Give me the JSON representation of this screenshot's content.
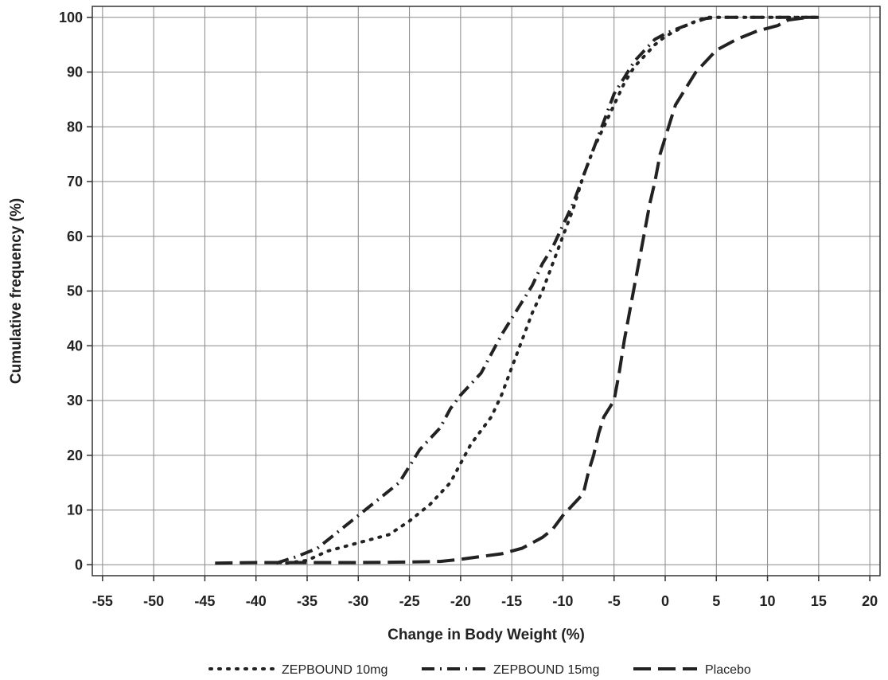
{
  "chart_data": {
    "type": "line",
    "xlabel": "Change in Body Weight (%)",
    "ylabel": "Cumulative frequency (%)",
    "xlim": [
      -56,
      21
    ],
    "ylim": [
      -2,
      102
    ],
    "x_ticks": [
      -55,
      -50,
      -45,
      -40,
      -35,
      -30,
      -25,
      -20,
      -15,
      -10,
      -5,
      0,
      5,
      10,
      15,
      20
    ],
    "y_ticks": [
      0,
      10,
      20,
      30,
      40,
      50,
      60,
      70,
      80,
      90,
      100
    ],
    "grid": true,
    "legend_position": "bottom",
    "series": [
      {
        "name": "ZEPBOUND 10mg",
        "style": "dotted",
        "color": "#222222",
        "points": [
          [
            -37,
            0.3
          ],
          [
            -35,
            0.8
          ],
          [
            -33,
            2.5
          ],
          [
            -31,
            3.5
          ],
          [
            -29,
            4.5
          ],
          [
            -27,
            5.5
          ],
          [
            -25,
            8
          ],
          [
            -23,
            11
          ],
          [
            -21,
            15
          ],
          [
            -19,
            22
          ],
          [
            -17,
            27
          ],
          [
            -16,
            31
          ],
          [
            -15,
            36
          ],
          [
            -14,
            41
          ],
          [
            -13,
            46
          ],
          [
            -12,
            50
          ],
          [
            -11,
            55
          ],
          [
            -10,
            60
          ],
          [
            -9,
            65
          ],
          [
            -8,
            71
          ],
          [
            -7,
            76
          ],
          [
            -6,
            80
          ],
          [
            -5,
            84
          ],
          [
            -4,
            88
          ],
          [
            -3,
            91
          ],
          [
            -2,
            93
          ],
          [
            -1,
            95
          ],
          [
            0,
            96.5
          ],
          [
            1,
            97.5
          ],
          [
            2,
            98.5
          ],
          [
            3,
            99.3
          ],
          [
            4,
            100
          ],
          [
            15,
            100
          ]
        ]
      },
      {
        "name": "ZEPBOUND 15mg",
        "style": "dash-dot",
        "color": "#222222",
        "points": [
          [
            -38,
            0.3
          ],
          [
            -36,
            1.5
          ],
          [
            -34,
            3
          ],
          [
            -32,
            6
          ],
          [
            -30,
            9
          ],
          [
            -28,
            12
          ],
          [
            -26,
            15
          ],
          [
            -25,
            18
          ],
          [
            -24,
            21
          ],
          [
            -22,
            25
          ],
          [
            -21,
            28.5
          ],
          [
            -20,
            31
          ],
          [
            -19,
            33
          ],
          [
            -18,
            35
          ],
          [
            -17,
            38.5
          ],
          [
            -16,
            42
          ],
          [
            -15,
            45
          ],
          [
            -14,
            48
          ],
          [
            -13,
            51
          ],
          [
            -12,
            55
          ],
          [
            -11,
            58
          ],
          [
            -10,
            62
          ],
          [
            -9,
            66
          ],
          [
            -8,
            71
          ],
          [
            -7,
            76
          ],
          [
            -6,
            81
          ],
          [
            -5,
            86
          ],
          [
            -4,
            89
          ],
          [
            -3,
            92
          ],
          [
            -2,
            94
          ],
          [
            -1,
            96
          ],
          [
            0,
            97
          ],
          [
            1,
            97.8
          ],
          [
            2,
            98.5
          ],
          [
            3,
            99.2
          ],
          [
            4,
            99.8
          ],
          [
            5,
            100
          ],
          [
            15,
            100
          ]
        ]
      },
      {
        "name": "Placebo",
        "style": "dashed",
        "color": "#222222",
        "points": [
          [
            -44,
            0.3
          ],
          [
            -40,
            0.4
          ],
          [
            -35,
            0.4
          ],
          [
            -30,
            0.4
          ],
          [
            -25,
            0.5
          ],
          [
            -22,
            0.6
          ],
          [
            -20,
            1
          ],
          [
            -18,
            1.5
          ],
          [
            -16,
            2
          ],
          [
            -14,
            3
          ],
          [
            -13,
            4
          ],
          [
            -12,
            5
          ],
          [
            -11,
            6.5
          ],
          [
            -10,
            9
          ],
          [
            -9,
            11
          ],
          [
            -8,
            13
          ],
          [
            -7.5,
            17
          ],
          [
            -7,
            20
          ],
          [
            -6.5,
            24
          ],
          [
            -6,
            27
          ],
          [
            -5,
            30
          ],
          [
            -4.5,
            35
          ],
          [
            -4,
            41
          ],
          [
            -3.5,
            46
          ],
          [
            -3,
            51
          ],
          [
            -2.5,
            56
          ],
          [
            -2,
            61
          ],
          [
            -1.5,
            66
          ],
          [
            -1,
            70
          ],
          [
            -0.5,
            75
          ],
          [
            0,
            78
          ],
          [
            0.5,
            81
          ],
          [
            1,
            84
          ],
          [
            2,
            87
          ],
          [
            3,
            90
          ],
          [
            4,
            92
          ],
          [
            5,
            94
          ],
          [
            7,
            96
          ],
          [
            9,
            97.5
          ],
          [
            11,
            98.5
          ],
          [
            12,
            99.5
          ],
          [
            14,
            100
          ],
          [
            15,
            100
          ]
        ]
      }
    ]
  }
}
